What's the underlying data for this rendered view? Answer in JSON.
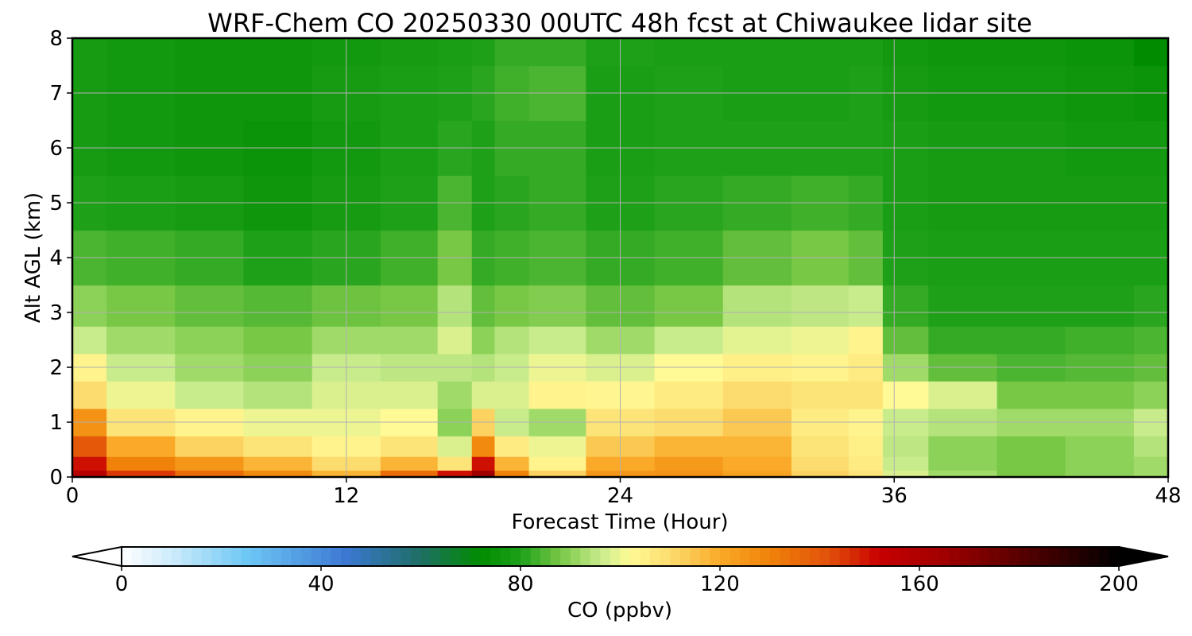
{
  "chart_data": {
    "type": "heatmap",
    "title": "WRF-Chem CO  20250330 00UTC 48h fcst at Chiwaukee lidar site",
    "xlabel": "Forecast Time (Hour)",
    "ylabel": "Alt AGL (km)",
    "xlim": [
      0,
      48
    ],
    "ylim": [
      0,
      8
    ],
    "xticks": [
      "0",
      "12",
      "24",
      "36",
      "48"
    ],
    "yticks": [
      "0",
      "1",
      "2",
      "3",
      "4",
      "5",
      "6",
      "7",
      "8"
    ],
    "grid": true,
    "colorbar": {
      "label": "CO  (ppbv)",
      "range": [
        0,
        200
      ],
      "ticks": [
        "0",
        "40",
        "80",
        "120",
        "160",
        "200"
      ],
      "extend": "both",
      "min_color": "#ffffff",
      "max_color": "#000000"
    },
    "x_hours": [
      0,
      3,
      6,
      9,
      12,
      15,
      17,
      18,
      19,
      21,
      24,
      27,
      30,
      33,
      35,
      36,
      39,
      42,
      45,
      48
    ],
    "z_km": [
      0,
      0.25,
      0.5,
      1,
      1.5,
      2,
      2.5,
      3,
      4,
      5,
      6,
      7,
      8
    ],
    "co_ppbv": [
      [
        158,
        150,
        140,
        126,
        110,
        104,
        96,
        90,
        84,
        80,
        78,
        78,
        78
      ],
      [
        145,
        130,
        120,
        108,
        100,
        96,
        92,
        88,
        83,
        79,
        77,
        77,
        77
      ],
      [
        135,
        125,
        112,
        104,
        96,
        92,
        90,
        86,
        82,
        78,
        76,
        76,
        76
      ],
      [
        128,
        118,
        108,
        100,
        94,
        90,
        88,
        85,
        80,
        76,
        75,
        76,
        76
      ],
      [
        118,
        110,
        104,
        100,
        98,
        96,
        92,
        87,
        81,
        78,
        77,
        78,
        77
      ],
      [
        135,
        118,
        108,
        102,
        98,
        95,
        92,
        88,
        83,
        80,
        79,
        79,
        78
      ],
      [
        150,
        108,
        98,
        90,
        92,
        95,
        98,
        94,
        88,
        84,
        81,
        80,
        79
      ],
      [
        165,
        150,
        128,
        112,
        98,
        94,
        90,
        86,
        82,
        80,
        80,
        81,
        80
      ],
      [
        130,
        118,
        106,
        96,
        98,
        96,
        94,
        88,
        83,
        81,
        82,
        83,
        82
      ],
      [
        112,
        104,
        100,
        92,
        104,
        100,
        96,
        89,
        84,
        82,
        82,
        84,
        82
      ],
      [
        125,
        120,
        114,
        108,
        103,
        98,
        92,
        86,
        82,
        80,
        79,
        79,
        80
      ],
      [
        126,
        124,
        118,
        110,
        106,
        102,
        96,
        88,
        83,
        81,
        80,
        80,
        79
      ],
      [
        122,
        120,
        118,
        114,
        110,
        105,
        99,
        94,
        86,
        82,
        80,
        79,
        79
      ],
      [
        112,
        110,
        108,
        106,
        108,
        104,
        100,
        95,
        88,
        83,
        80,
        79,
        79
      ],
      [
        108,
        106,
        105,
        104,
        108,
        106,
        104,
        96,
        86,
        82,
        80,
        80,
        79
      ],
      [
        98,
        96,
        95,
        96,
        102,
        92,
        86,
        82,
        80,
        79,
        79,
        78,
        77
      ],
      [
        92,
        90,
        90,
        94,
        98,
        86,
        82,
        80,
        79,
        78,
        78,
        77,
        76
      ],
      [
        88,
        88,
        88,
        92,
        88,
        84,
        82,
        80,
        79,
        78,
        78,
        77,
        76
      ],
      [
        90,
        90,
        90,
        92,
        88,
        85,
        83,
        80,
        79,
        78,
        77,
        76,
        75
      ],
      [
        92,
        92,
        94,
        96,
        90,
        86,
        84,
        81,
        79,
        78,
        77,
        75,
        72
      ]
    ]
  }
}
